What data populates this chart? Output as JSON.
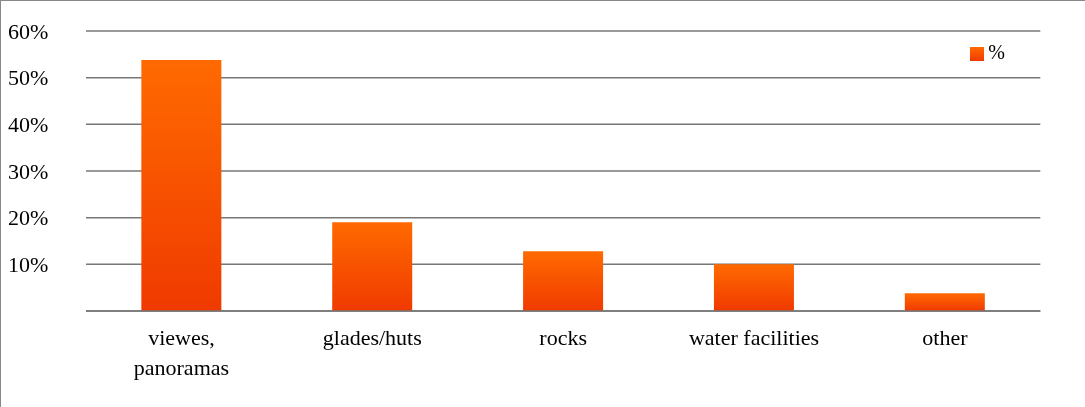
{
  "chart_data": {
    "type": "bar",
    "categories": [
      "viewes, panoramas",
      "glades/huts",
      "rocks",
      "water facilities",
      "other"
    ],
    "series": [
      {
        "name": "%",
        "color": "#f03a00",
        "values": [
          53.8,
          19,
          12.8,
          10,
          3.8
        ]
      }
    ],
    "ylim": [
      0,
      60
    ],
    "yticks": [
      {
        "value": 0,
        "label": null
      },
      {
        "value": 10,
        "label": "10%"
      },
      {
        "value": 20,
        "label": "20%"
      },
      {
        "value": 30,
        "label": "30%"
      },
      {
        "value": 40,
        "label": "40%"
      },
      {
        "value": 50,
        "label": "50%"
      },
      {
        "value": 60,
        "label": "60%"
      }
    ],
    "grid": "y",
    "legend": "top right"
  }
}
